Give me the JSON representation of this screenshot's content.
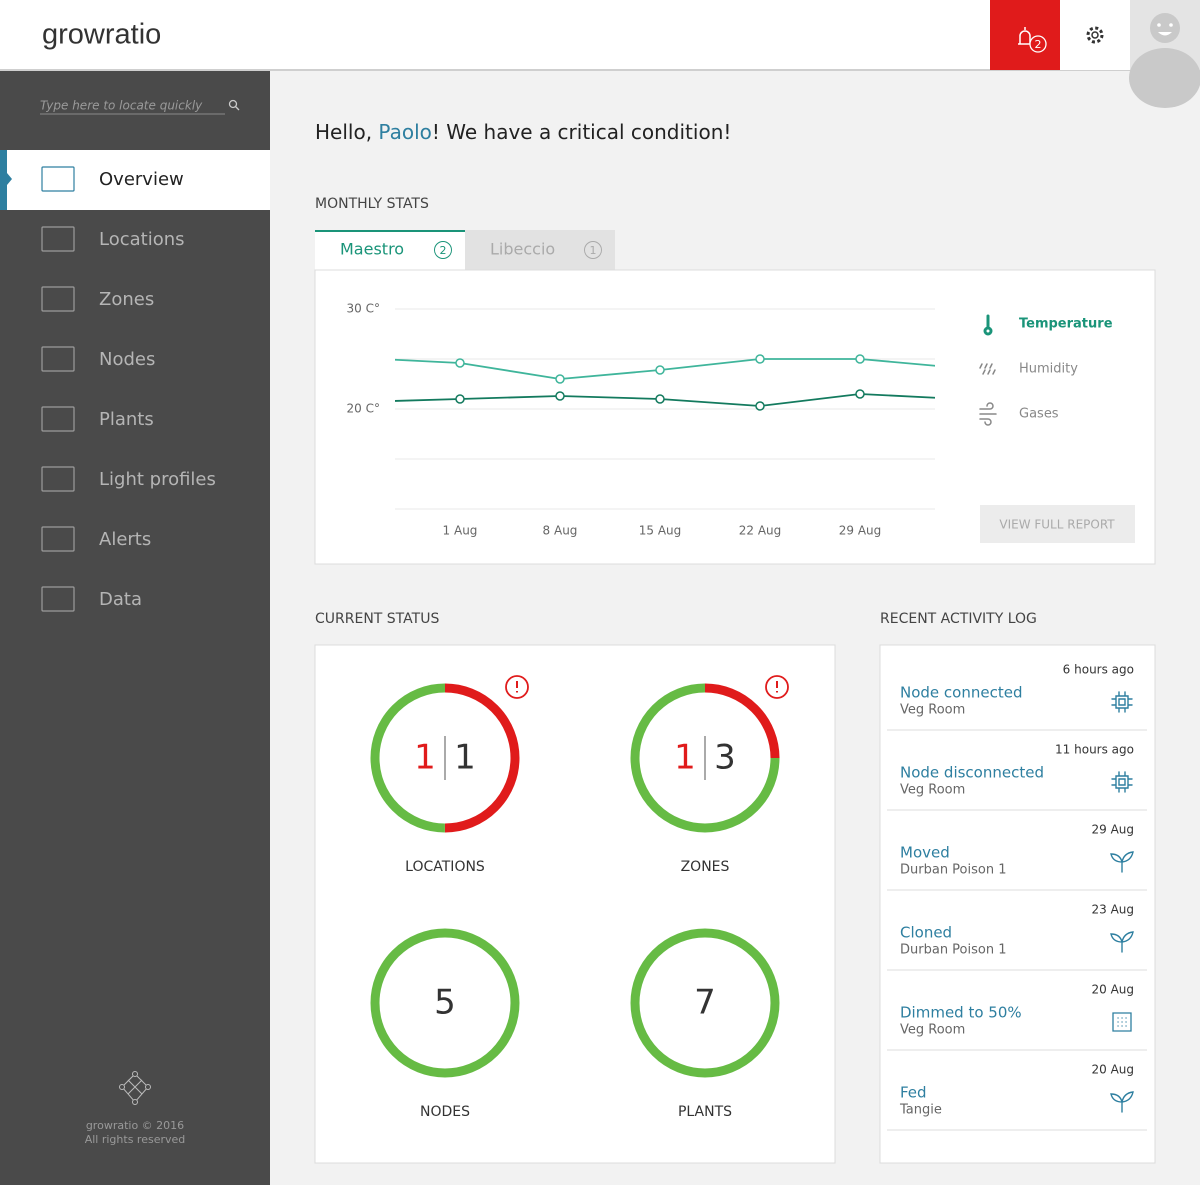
{
  "header": {
    "logo": "growratio",
    "notifications": 2
  },
  "sidebar": {
    "search_placeholder": "Type here to locate quickly",
    "menu": [
      "Overview",
      "Locations",
      "Zones",
      "Nodes",
      "Plants",
      "Light profiles",
      "Alerts",
      "Data"
    ],
    "active_index": 0,
    "footer": [
      "growratio © 2016",
      "All rights reserved"
    ]
  },
  "greeting": {
    "prefix": "Hello, ",
    "name": "Paolo",
    "suffix": "! We have a critical condition!"
  },
  "monthly_stats": {
    "title": "MONTHLY STATS",
    "tabs": [
      {
        "name": "Maestro",
        "count": 2
      },
      {
        "name": "Libeccio",
        "count": 1
      }
    ],
    "active_tab": 0,
    "legend": [
      {
        "label": "Temperature",
        "icon": "thermometer",
        "active": true
      },
      {
        "label": "Humidity",
        "icon": "drops",
        "active": false
      },
      {
        "label": "Gases",
        "icon": "wind",
        "active": false
      }
    ],
    "button": "VIEW FULL REPORT"
  },
  "chart_data": {
    "type": "line",
    "categories": [
      null,
      "1 Aug",
      "8 Aug",
      "15 Aug",
      "22 Aug",
      "29 Aug",
      null
    ],
    "series": [
      {
        "color": "#3fb59b",
        "values": [
          25.1,
          24.6,
          23.0,
          23.9,
          25.0,
          25.0,
          24.1
        ]
      },
      {
        "color": "#137a5e",
        "values": [
          20.7,
          21.0,
          21.3,
          21.0,
          20.3,
          21.5,
          21.0
        ]
      }
    ],
    "ylim": [
      10,
      30
    ],
    "yticks": [
      {
        "value": 30,
        "label": "30 C°"
      },
      {
        "value": 20,
        "label": "20 C°"
      }
    ],
    "minor_yticks": [
      25,
      15,
      10
    ],
    "grid": true
  },
  "current_status": {
    "title": "CURRENT STATUS",
    "items": [
      {
        "label": "LOCATIONS",
        "critical": 1,
        "ok": 1,
        "alert": true
      },
      {
        "label": "ZONES",
        "critical": 1,
        "ok": 3,
        "alert": true
      },
      {
        "label": "NODES",
        "total": 5,
        "alert": false
      },
      {
        "label": "PLANTS",
        "total": 7,
        "alert": false
      }
    ]
  },
  "activity_log": {
    "title": "RECENT ACTIVITY LOG",
    "items": [
      {
        "time": "6 hours ago",
        "title": "Node connected",
        "subtitle": "Veg Room",
        "icon": "node"
      },
      {
        "time": "11 hours ago",
        "title": "Node disconnected",
        "subtitle": "Veg Room",
        "icon": "node"
      },
      {
        "time": "29 Aug",
        "title": "Moved",
        "subtitle": "Durban Poison 1",
        "icon": "plant"
      },
      {
        "time": "23 Aug",
        "title": "Cloned",
        "subtitle": "Durban Poison 1",
        "icon": "plant"
      },
      {
        "time": "20 Aug",
        "title": "Dimmed to 50%",
        "subtitle": "Veg Room",
        "icon": "light"
      },
      {
        "time": "20 Aug",
        "title": "Fed",
        "subtitle": "Tangie",
        "icon": "plant"
      }
    ]
  }
}
